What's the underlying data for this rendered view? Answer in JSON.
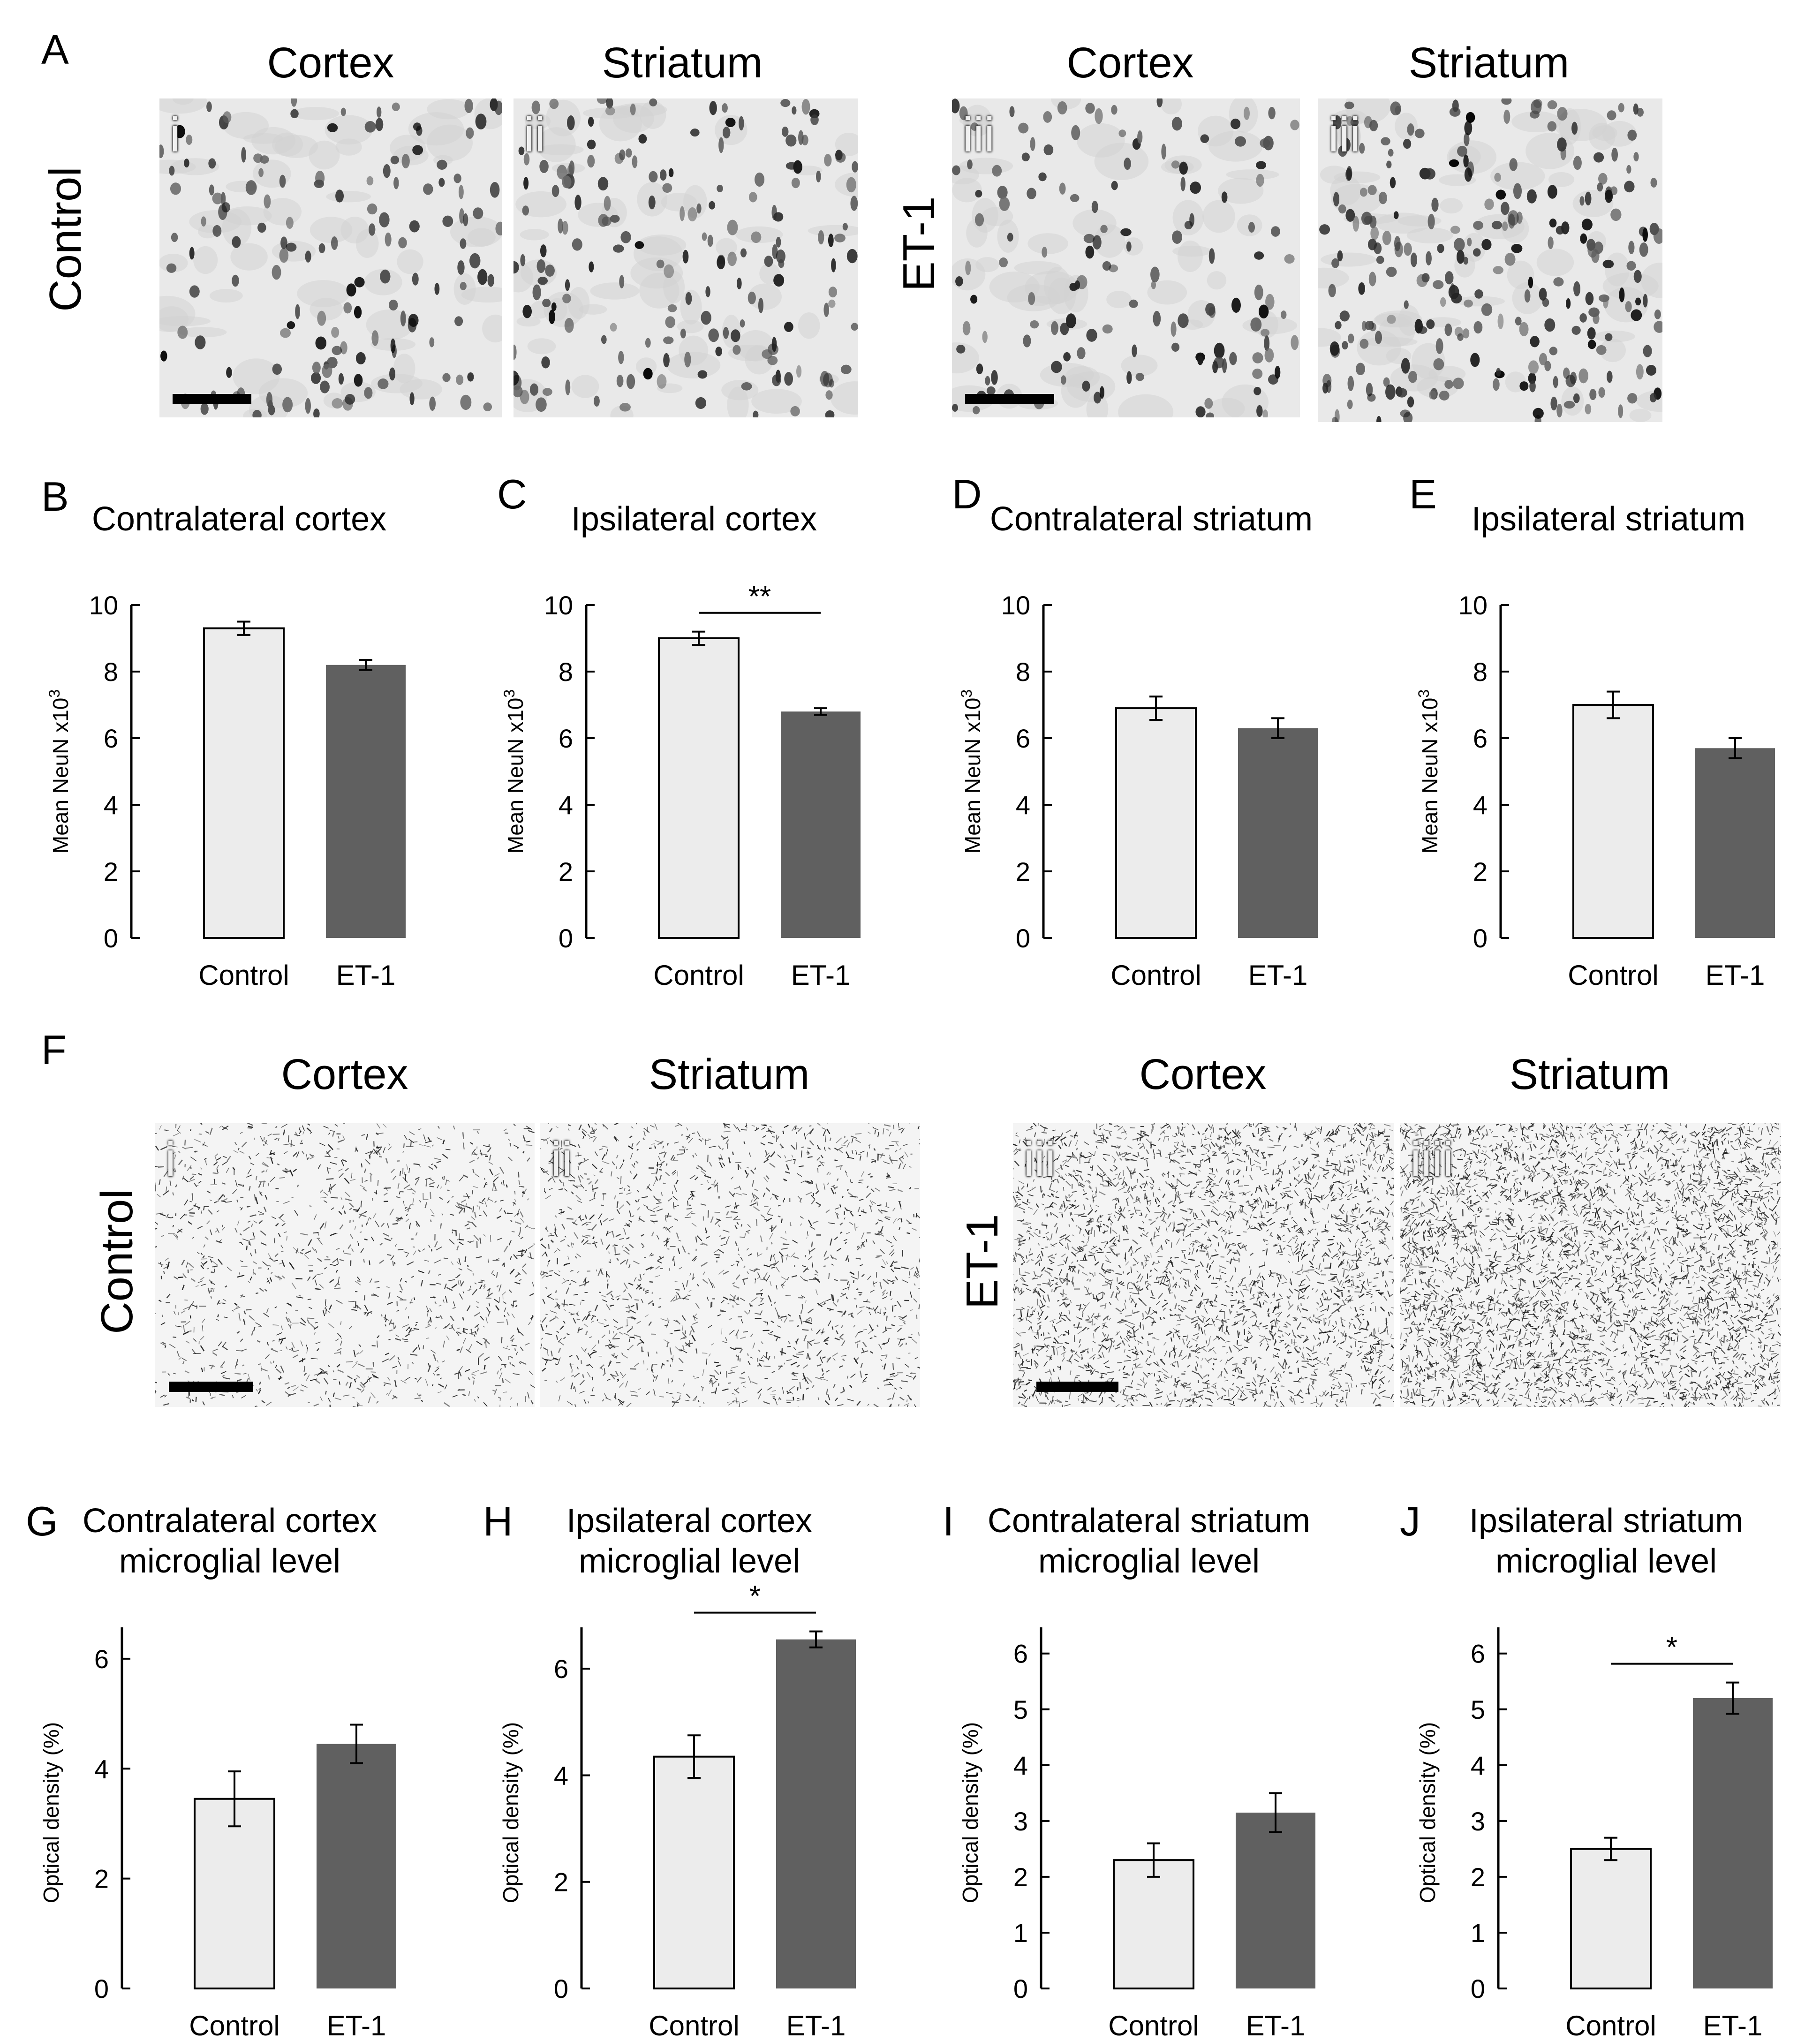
{
  "panel_letters": {
    "A": "A",
    "B": "B",
    "C": "C",
    "D": "D",
    "E": "E",
    "F": "F",
    "G": "G",
    "H": "H",
    "I": "I",
    "J": "J"
  },
  "panel_A": {
    "headings": [
      "Cortex",
      "Striatum",
      "Cortex",
      "Striatum"
    ],
    "row_labels": {
      "control": "Control",
      "et1": "ET-1"
    },
    "image_labels": [
      "i",
      "ii",
      "iii",
      "iii"
    ]
  },
  "panel_F": {
    "headings": [
      "Cortex",
      "Striatum",
      "Cortex",
      "Striatum"
    ],
    "row_labels": {
      "control": "Control",
      "et1": "ET-1"
    },
    "image_labels": [
      "i",
      "ii",
      "iii",
      "iiii"
    ]
  },
  "colors": {
    "control_bar": "#ececec",
    "et1_bar": "#606060",
    "axis": "#000000"
  },
  "chart_data": [
    {
      "id": "B",
      "type": "bar",
      "title": "Contralateral cortex",
      "ylabel": "Mean NeuN x10^3",
      "categories": [
        "Control",
        "ET-1"
      ],
      "values": [
        9.3,
        8.2
      ],
      "errors": [
        0.2,
        0.15
      ],
      "ylim": [
        0,
        10
      ],
      "yticks": [
        "0",
        "2",
        "4",
        "6",
        "8",
        "10"
      ],
      "significance": ""
    },
    {
      "id": "C",
      "type": "bar",
      "title": "Ipsilateral cortex",
      "ylabel": "Mean NeuN x10^3",
      "categories": [
        "Control",
        "ET-1"
      ],
      "values": [
        9.0,
        6.8
      ],
      "errors": [
        0.2,
        0.1
      ],
      "ylim": [
        0,
        10
      ],
      "yticks": [
        "0",
        "2",
        "4",
        "6",
        "8",
        "10"
      ],
      "significance": "**"
    },
    {
      "id": "D",
      "type": "bar",
      "title": "Contralateral striatum",
      "ylabel": "Mean NeuN x10^3",
      "categories": [
        "Control",
        "ET-1"
      ],
      "values": [
        6.9,
        6.3
      ],
      "errors": [
        0.35,
        0.3
      ],
      "ylim": [
        0,
        10
      ],
      "yticks": [
        "0",
        "2",
        "4",
        "6",
        "8",
        "10"
      ],
      "significance": ""
    },
    {
      "id": "E",
      "type": "bar",
      "title": "Ipsilateral striatum",
      "ylabel": "Mean NeuN x10^3",
      "categories": [
        "Control",
        "ET-1"
      ],
      "values": [
        7.0,
        5.7
      ],
      "errors": [
        0.4,
        0.3
      ],
      "ylim": [
        0,
        10
      ],
      "yticks": [
        "0",
        "2",
        "4",
        "6",
        "8",
        "10"
      ],
      "significance": ""
    },
    {
      "id": "G",
      "type": "bar",
      "title": [
        "Contralateral cortex",
        "microglial level"
      ],
      "ylabel": "Optical density (%)",
      "categories": [
        "Control",
        "ET-1"
      ],
      "values": [
        3.45,
        4.45
      ],
      "errors": [
        0.5,
        0.35
      ],
      "ylim": [
        0,
        6.4
      ],
      "ytick_values": [
        0,
        2,
        4,
        6
      ],
      "significance": ""
    },
    {
      "id": "H",
      "type": "bar",
      "title": [
        "Ipsilateral cortex",
        "microglial level"
      ],
      "ylabel": "Optical density (%)",
      "categories": [
        "Control",
        "ET-1"
      ],
      "values": [
        4.35,
        6.55
      ],
      "errors": [
        0.4,
        0.15
      ],
      "ylim": [
        0,
        6.6
      ],
      "ytick_values": [
        0,
        2,
        4,
        6
      ],
      "significance": "*"
    },
    {
      "id": "I",
      "type": "bar",
      "title": [
        "Contralateral striatum",
        "microglial level"
      ],
      "ylabel": "Optical density (%)",
      "categories": [
        "Control",
        "ET-1"
      ],
      "values": [
        2.3,
        3.15
      ],
      "errors": [
        0.3,
        0.35
      ],
      "ylim": [
        0,
        6.3
      ],
      "ytick_values": [
        0,
        1,
        2,
        3,
        4,
        5,
        6
      ],
      "significance": ""
    },
    {
      "id": "J",
      "type": "bar",
      "title": [
        "Ipsilateral striatum",
        "microglial level"
      ],
      "ylabel": "Optical density (%)",
      "categories": [
        "Control",
        "ET-1"
      ],
      "values": [
        2.5,
        5.2
      ],
      "errors": [
        0.2,
        0.28
      ],
      "ylim": [
        0,
        6.3
      ],
      "ytick_values": [
        0,
        1,
        2,
        3,
        4,
        5,
        6
      ],
      "significance": "*"
    }
  ]
}
